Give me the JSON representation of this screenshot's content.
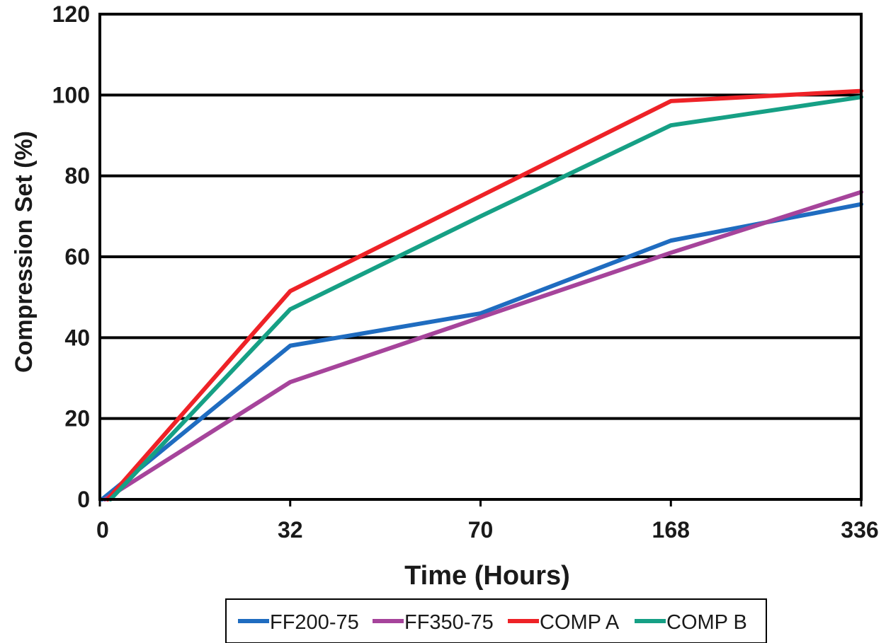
{
  "chart_data": {
    "type": "line",
    "title": "",
    "xlabel": "Time (Hours)",
    "ylabel": "Compression Set (%)",
    "x": [
      "0",
      "32",
      "70",
      "168",
      "336"
    ],
    "ylim": [
      0,
      120
    ],
    "yticks": [
      0,
      20,
      40,
      60,
      80,
      100,
      120
    ],
    "grid": "horizontal",
    "legend_position": "bottom",
    "series": [
      {
        "name": "FF200-75",
        "color": "#1f6cc0",
        "values": [
          0,
          38,
          46,
          64,
          73
        ]
      },
      {
        "name": "FF350-75",
        "color": "#a6449b",
        "values": [
          0,
          29,
          45,
          61,
          76
        ]
      },
      {
        "name": "COMP A",
        "color": "#ee2227",
        "values": [
          0,
          51.5,
          75,
          98.5,
          101
        ]
      },
      {
        "name": "COMP B",
        "color": "#16a085",
        "values": [
          0,
          47,
          70,
          92.5,
          99.5
        ]
      }
    ]
  }
}
